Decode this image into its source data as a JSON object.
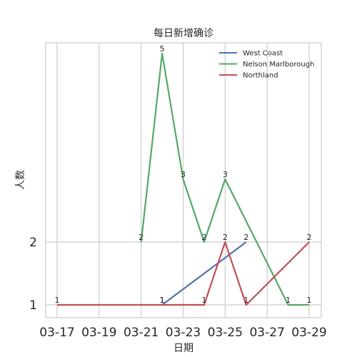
{
  "chart_data": {
    "type": "line",
    "title": "每日新增确诊",
    "xlabel": "日期",
    "ylabel": "人数",
    "x_dates": [
      "03-17",
      "03-18",
      "03-19",
      "03-20",
      "03-21",
      "03-22",
      "03-23",
      "03-24",
      "03-25",
      "03-26",
      "03-27",
      "03-28",
      "03-29"
    ],
    "xticks": [
      "03-17",
      "03-19",
      "03-21",
      "03-23",
      "03-25",
      "03-27",
      "03-29"
    ],
    "yticks": [
      1,
      2
    ],
    "ylim": [
      0.85,
      5.55
    ],
    "xlim": [
      "03-16.6",
      "03-29.6"
    ],
    "grid": true,
    "legend_position": "upper right",
    "series": [
      {
        "name": "West Coast",
        "color": "#4c72b0",
        "points": [
          {
            "x": "03-22",
            "y": 1
          },
          {
            "x": "03-26",
            "y": 2
          }
        ]
      },
      {
        "name": "Nelson Marlborough",
        "color": "#55a868",
        "points": [
          {
            "x": "03-21",
            "y": 2
          },
          {
            "x": "03-22",
            "y": 5
          },
          {
            "x": "03-23",
            "y": 3
          },
          {
            "x": "03-24",
            "y": 2
          },
          {
            "x": "03-25",
            "y": 3
          },
          {
            "x": "03-28",
            "y": 1
          },
          {
            "x": "03-29",
            "y": 1
          }
        ]
      },
      {
        "name": "Northland",
        "color": "#c44e52",
        "points": [
          {
            "x": "03-17",
            "y": 1
          },
          {
            "x": "03-22",
            "y": 1
          },
          {
            "x": "03-24",
            "y": 1
          },
          {
            "x": "03-25",
            "y": 2
          },
          {
            "x": "03-26",
            "y": 1
          },
          {
            "x": "03-29",
            "y": 2
          }
        ]
      }
    ]
  }
}
